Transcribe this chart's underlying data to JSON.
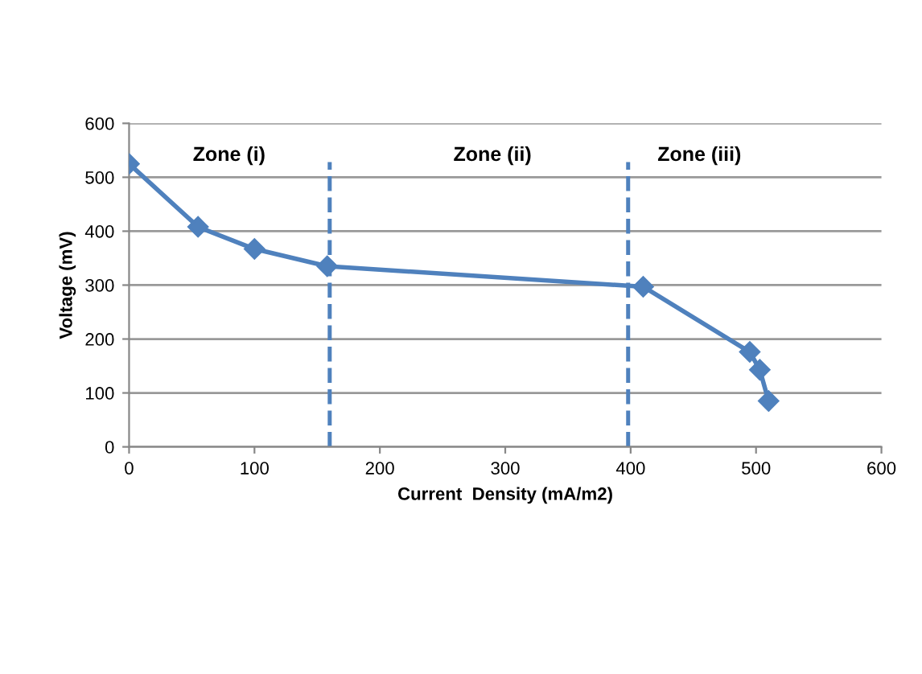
{
  "chart_data": {
    "type": "line",
    "xlabel": "Current  Density (mA/m2)",
    "ylabel": "Voltage (mV)",
    "x": [
      0,
      55,
      100,
      158,
      410,
      495,
      503,
      510
    ],
    "series": [
      {
        "color": "#4f81bd",
        "values": [
          525,
          408,
          367,
          335,
          297,
          176,
          143,
          85
        ]
      }
    ],
    "xlim": [
      0,
      600
    ],
    "xticks": [
      0,
      100,
      200,
      300,
      400,
      500,
      600
    ],
    "ylim": [
      0,
      600
    ],
    "yticks": [
      0,
      100,
      200,
      300,
      400,
      500,
      600
    ],
    "grid": "y",
    "marker": "diamond",
    "line_style": "solid",
    "ref_lines": [
      {
        "axis": "x",
        "value": 160,
        "color": "#4f81bd",
        "line_style": "dashed"
      },
      {
        "axis": "x",
        "value": 398,
        "color": "#4f81bd",
        "line_style": "dashed"
      }
    ],
    "annotations": [
      "Zone (i)",
      "Zone (ii)",
      "Zone (iii)"
    ]
  }
}
